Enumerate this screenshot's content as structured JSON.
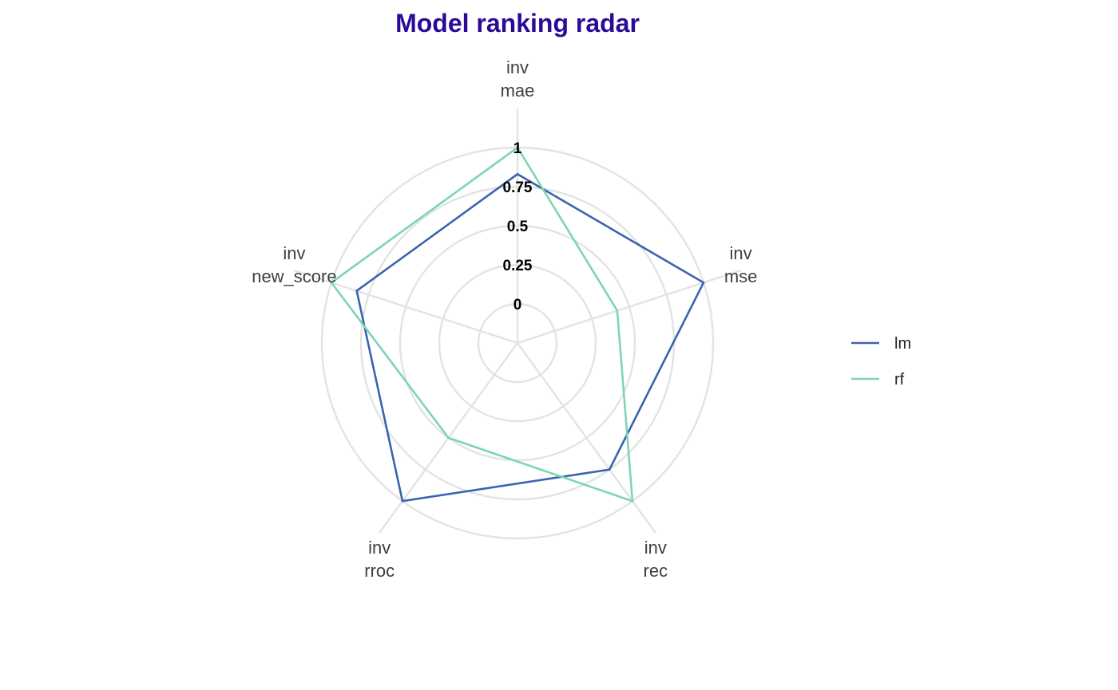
{
  "chart_data": {
    "type": "radar",
    "title": "Model ranking radar",
    "axes": [
      {
        "line1": "inv",
        "line2": "mae"
      },
      {
        "line1": "inv",
        "line2": "mse"
      },
      {
        "line1": "inv",
        "line2": "rec"
      },
      {
        "line1": "inv",
        "line2": "rroc"
      },
      {
        "line1": "inv",
        "line2": "new_score"
      }
    ],
    "radial_ticks": [
      "0",
      "0.25",
      "0.5",
      "0.75",
      "1"
    ],
    "radial_tick_values": [
      0,
      0.25,
      0.5,
      0.75,
      1
    ],
    "rlim": [
      -0.25,
      1.25
    ],
    "series": [
      {
        "name": "lm",
        "color": "#3A63B0",
        "values": [
          0.83,
          1.0,
          0.75,
          1.0,
          0.83
        ]
      },
      {
        "name": "rf",
        "color": "#7DD5B3",
        "values": [
          1.0,
          0.42,
          1.0,
          0.5,
          1.0
        ]
      }
    ],
    "legend_position": "right",
    "grid": true
  },
  "colors": {
    "title": "#2B0A99",
    "grid": "#E3E3E3"
  }
}
